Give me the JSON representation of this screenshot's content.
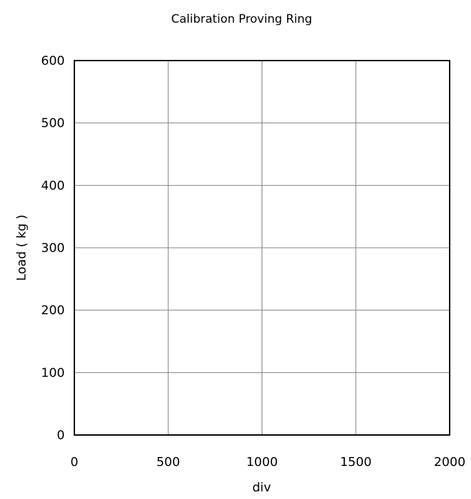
{
  "chart_data": {
    "type": "scatter",
    "title": "Calibration Proving Ring",
    "xlabel": "div",
    "ylabel": "Load ( kg )",
    "xlim": [
      0,
      2000
    ],
    "ylim": [
      0,
      600
    ],
    "x_ticks": [
      "0",
      "500",
      "1000",
      "1500",
      "2000"
    ],
    "y_ticks": [
      "0",
      "100",
      "200",
      "300",
      "400",
      "500",
      "600"
    ],
    "x_tick_values": [
      0,
      500,
      1000,
      1500,
      2000
    ],
    "y_tick_values": [
      0,
      100,
      200,
      300,
      400,
      500,
      600
    ],
    "grid": true,
    "series": [],
    "colors": {
      "frame": "#000000",
      "grid": "#808080",
      "text": "#000000"
    }
  }
}
